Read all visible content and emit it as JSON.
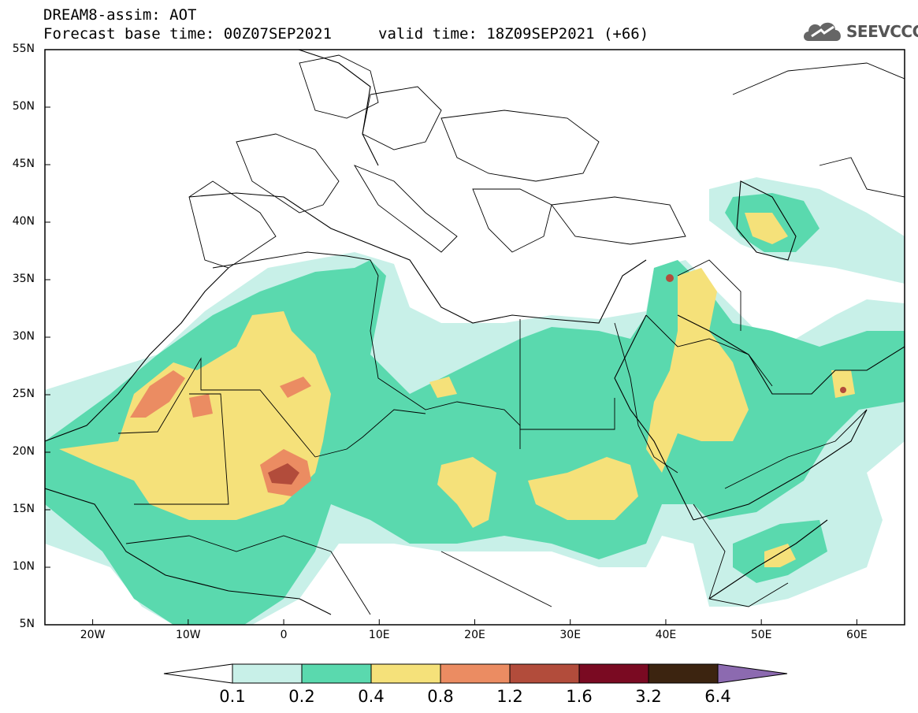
{
  "header": {
    "title": "DREAM8-assim: AOT",
    "base_time": "Forecast base time: 00Z07SEP2021",
    "valid_time": "valid time: 18Z09SEP2021 (+66)"
  },
  "logo": {
    "text": "SEEVCCC",
    "icon": "cloud-logo-icon"
  },
  "map": {
    "lat_labels": [
      "55N",
      "50N",
      "45N",
      "40N",
      "35N",
      "30N",
      "25N",
      "20N",
      "15N",
      "10N",
      "5N"
    ],
    "lon_labels": [
      "20W",
      "10W",
      "0",
      "10E",
      "20E",
      "30E",
      "40E",
      "50E",
      "60E"
    ],
    "lat_range": [
      5,
      55
    ],
    "lon_range": [
      -25,
      65
    ],
    "land_color": "#ffffff",
    "border_color": "#000000"
  },
  "colorbar": {
    "levels": [
      "0.1",
      "0.2",
      "0.4",
      "0.8",
      "1.2",
      "1.6",
      "3.2",
      "6.4"
    ],
    "colors": [
      "#c8f0e8",
      "#5ad9ae",
      "#f5e17a",
      "#eb8c62",
      "#b24c3b",
      "#7a0a22",
      "#3c2410",
      "#8c6ab0"
    ]
  }
}
